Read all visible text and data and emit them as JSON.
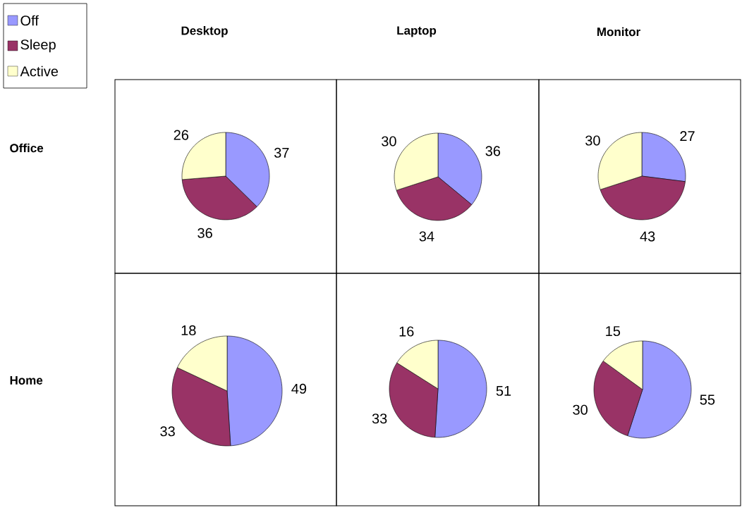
{
  "chart_data": [
    {
      "type": "pie",
      "title": "Desktop",
      "ylabel": "Office",
      "categories": [
        "Off",
        "Sleep",
        "Active"
      ],
      "values": [
        37,
        36,
        26
      ],
      "colors": [
        "#9999ff",
        "#993366",
        "#ffffcc"
      ],
      "data_labels": true,
      "legend": "top left"
    },
    {
      "type": "pie",
      "title": "Laptop",
      "categories": [
        null,
        null,
        null
      ],
      "values": [
        36,
        34,
        30
      ],
      "colors": [
        "#9999ff",
        "#993366",
        "#ffffcc"
      ],
      "data_labels": true
    },
    {
      "type": "pie",
      "title": "Monitor",
      "categories": [
        null,
        null,
        null
      ],
      "values": [
        27,
        43,
        30
      ],
      "colors": [
        "#9999ff",
        "#993366",
        "#ffffcc"
      ],
      "data_labels": true
    },
    {
      "type": "pie",
      "ylabel": "Home",
      "categories": [
        null,
        null,
        null
      ],
      "values": [
        49,
        33,
        18
      ],
      "colors": [
        "#9999ff",
        "#993366",
        "#ffffcc"
      ],
      "data_labels": true
    },
    {
      "type": "pie",
      "categories": [
        null,
        null,
        null
      ],
      "values": [
        51,
        33,
        16
      ],
      "colors": [
        "#9999ff",
        "#993366",
        "#ffffcc"
      ],
      "data_labels": true
    },
    {
      "type": "pie",
      "categories": [
        null,
        null,
        null
      ],
      "values": [
        55,
        30,
        15
      ],
      "colors": [
        "#9999ff",
        "#993366",
        "#ffffcc"
      ],
      "data_labels": true
    }
  ]
}
